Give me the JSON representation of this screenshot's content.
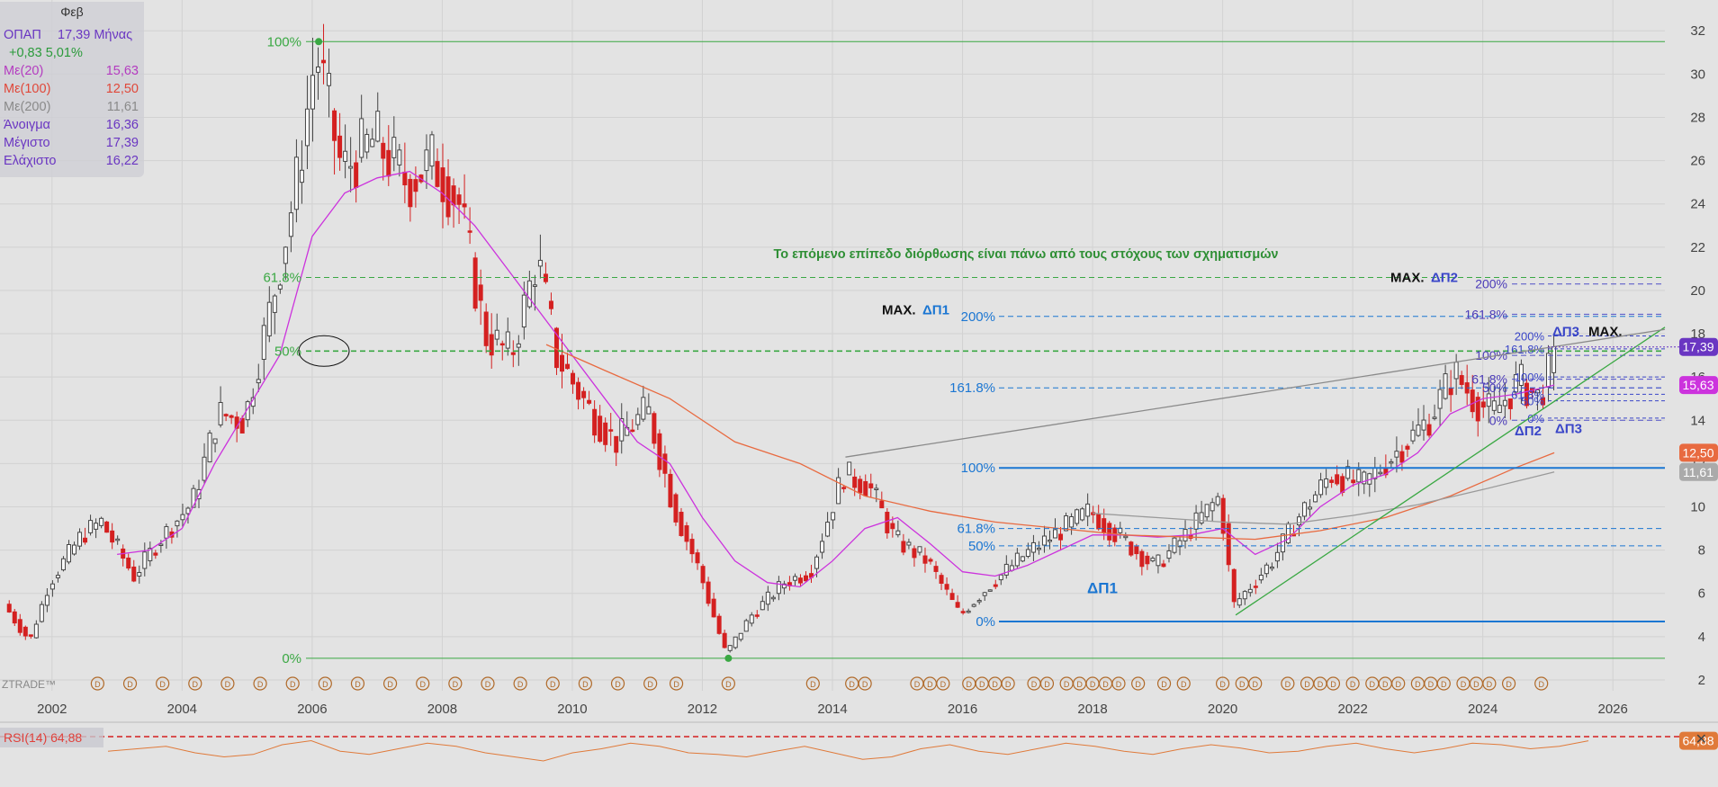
{
  "info": {
    "period": "Φεβ",
    "symbol": "ΟΠΑΠ",
    "price_text": "17,39 Μήνας",
    "change_text": "+0,83 5,01%",
    "rows": [
      {
        "label": "Με(20)",
        "value": "15,63",
        "color": "#b43cc0"
      },
      {
        "label": "Με(100)",
        "value": "12,50",
        "color": "#e0483a"
      },
      {
        "label": "Με(200)",
        "value": "11,61",
        "color": "#8a8a8a"
      },
      {
        "label": "Άνοιγμα",
        "value": "16,36",
        "color": "#6a36c2"
      },
      {
        "label": "Μέγιστο",
        "value": "17,39",
        "color": "#6a36c2"
      },
      {
        "label": "Ελάχιστο",
        "value": "16,22",
        "color": "#6a36c2"
      }
    ]
  },
  "rsi": {
    "label": "RSI(14)",
    "value": "64,88",
    "last_badge": "64,88",
    "series": [
      52,
      55,
      58,
      50,
      45,
      48,
      60,
      65,
      52,
      48,
      55,
      62,
      58,
      50,
      45,
      40,
      50,
      55,
      62,
      58,
      50,
      48,
      45,
      52,
      58,
      50,
      42,
      45,
      55,
      60,
      52,
      48,
      55,
      62,
      58,
      52,
      48,
      55,
      60,
      56,
      50,
      52,
      58,
      62,
      55,
      50,
      55,
      62,
      60,
      55,
      58,
      64.88
    ]
  },
  "watermark": "ZTRADE™",
  "annotation_main": "Το επόμενο επίπεδο διόρθωσης είναι πάνω από τους στόχους των σχηματισμών",
  "colors": {
    "up": "#444444",
    "down": "#d42020",
    "ma20": "#cc33dd",
    "ma100": "#e86a40",
    "ma200": "#9a9a9a",
    "fib_green": "#3aa843",
    "fib_blue": "#1b76d2"
  },
  "chart_data": {
    "type": "candlestick",
    "title": "ΟΠΑΠ",
    "interval": "monthly",
    "x_range": [
      2001.2,
      2026.8
    ],
    "x_ticks": [
      "2002",
      "2004",
      "2006",
      "2008",
      "2010",
      "2012",
      "2014",
      "2016",
      "2018",
      "2020",
      "2022",
      "2024",
      "2026"
    ],
    "y_range": [
      1.5,
      32.8
    ],
    "y_ticks": [
      "2",
      "4",
      "6",
      "8",
      "10",
      "12",
      "14",
      "16",
      "18",
      "20",
      "22",
      "24",
      "26",
      "28",
      "30",
      "32"
    ],
    "price_path": [
      [
        2001.3,
        5.5
      ],
      [
        2001.7,
        3.8
      ],
      [
        2002.0,
        6.5
      ],
      [
        2002.5,
        8.7
      ],
      [
        2002.8,
        9.3
      ],
      [
        2003.3,
        6.8
      ],
      [
        2003.7,
        8.5
      ],
      [
        2004.2,
        10.2
      ],
      [
        2004.6,
        14.3
      ],
      [
        2005.0,
        14.0
      ],
      [
        2005.5,
        20.5
      ],
      [
        2005.8,
        25.0
      ],
      [
        2006.1,
        31.1
      ],
      [
        2006.5,
        25.5
      ],
      [
        2007.0,
        27.0
      ],
      [
        2007.5,
        25.0
      ],
      [
        2007.9,
        26.0
      ],
      [
        2008.3,
        24.0
      ],
      [
        2008.7,
        18.0
      ],
      [
        2009.1,
        17.0
      ],
      [
        2009.5,
        21.5
      ],
      [
        2009.8,
        17.0
      ],
      [
        2010.3,
        14.5
      ],
      [
        2010.7,
        13.0
      ],
      [
        2011.2,
        14.5
      ],
      [
        2011.6,
        10.0
      ],
      [
        2012.0,
        7.0
      ],
      [
        2012.4,
        3.2
      ],
      [
        2012.8,
        5.0
      ],
      [
        2013.3,
        6.5
      ],
      [
        2013.7,
        7.0
      ],
      [
        2014.2,
        11.5
      ],
      [
        2014.6,
        11.0
      ],
      [
        2015.0,
        8.5
      ],
      [
        2015.5,
        7.5
      ],
      [
        2016.0,
        5.0
      ],
      [
        2016.5,
        6.5
      ],
      [
        2017.0,
        7.8
      ],
      [
        2017.5,
        8.8
      ],
      [
        2018.0,
        9.8
      ],
      [
        2018.5,
        8.5
      ],
      [
        2019.0,
        7.2
      ],
      [
        2019.5,
        8.8
      ],
      [
        2020.0,
        10.5
      ],
      [
        2020.2,
        5.4
      ],
      [
        2020.8,
        7.5
      ],
      [
        2021.2,
        9.5
      ],
      [
        2021.7,
        11.5
      ],
      [
        2022.2,
        11.0
      ],
      [
        2022.7,
        12.5
      ],
      [
        2023.2,
        14.0
      ],
      [
        2023.6,
        16.2
      ],
      [
        2023.9,
        15.0
      ],
      [
        2024.2,
        14.3
      ],
      [
        2024.6,
        15.8
      ],
      [
        2024.9,
        15.0
      ],
      [
        2025.1,
        16.6
      ]
    ],
    "series": [
      {
        "name": "Με(20)",
        "last_value": "15,63",
        "path": [
          [
            2003.0,
            7.8
          ],
          [
            2003.5,
            8.0
          ],
          [
            2004.0,
            9.0
          ],
          [
            2004.5,
            12.0
          ],
          [
            2005.0,
            14.5
          ],
          [
            2005.5,
            17.0
          ],
          [
            2006.0,
            22.5
          ],
          [
            2006.5,
            24.5
          ],
          [
            2007.0,
            25.2
          ],
          [
            2007.5,
            25.5
          ],
          [
            2008.0,
            24.5
          ],
          [
            2008.5,
            23.0
          ],
          [
            2009.0,
            21.0
          ],
          [
            2009.5,
            19.0
          ],
          [
            2010.0,
            17.0
          ],
          [
            2010.5,
            15.0
          ],
          [
            2011.0,
            13.0
          ],
          [
            2011.5,
            12.0
          ],
          [
            2012.0,
            9.5
          ],
          [
            2012.5,
            7.5
          ],
          [
            2013.0,
            6.5
          ],
          [
            2013.5,
            6.3
          ],
          [
            2014.0,
            7.5
          ],
          [
            2014.5,
            9.0
          ],
          [
            2015.0,
            9.5
          ],
          [
            2015.5,
            8.3
          ],
          [
            2016.0,
            7.0
          ],
          [
            2016.5,
            6.8
          ],
          [
            2017.0,
            7.3
          ],
          [
            2017.5,
            8.0
          ],
          [
            2018.0,
            8.7
          ],
          [
            2018.5,
            8.7
          ],
          [
            2019.0,
            8.6
          ],
          [
            2019.5,
            8.7
          ],
          [
            2020.0,
            9.0
          ],
          [
            2020.5,
            7.8
          ],
          [
            2021.0,
            8.5
          ],
          [
            2021.5,
            10.0
          ],
          [
            2022.0,
            11.0
          ],
          [
            2022.5,
            11.5
          ],
          [
            2023.0,
            12.5
          ],
          [
            2023.5,
            14.3
          ],
          [
            2024.0,
            15.0
          ],
          [
            2024.5,
            15.2
          ],
          [
            2025.1,
            15.63
          ]
        ]
      },
      {
        "name": "Με(100)",
        "last_value": "12,50",
        "path": [
          [
            2009.6,
            17.5
          ],
          [
            2010.5,
            16.3
          ],
          [
            2011.5,
            15.0
          ],
          [
            2012.5,
            13.0
          ],
          [
            2013.5,
            12.0
          ],
          [
            2014.5,
            10.5
          ],
          [
            2015.5,
            9.8
          ],
          [
            2016.5,
            9.3
          ],
          [
            2017.5,
            9.0
          ],
          [
            2018.5,
            8.7
          ],
          [
            2019.5,
            8.6
          ],
          [
            2020.5,
            8.5
          ],
          [
            2021.5,
            8.9
          ],
          [
            2022.5,
            9.5
          ],
          [
            2023.5,
            10.5
          ],
          [
            2024.5,
            11.8
          ],
          [
            2025.1,
            12.5
          ]
        ]
      },
      {
        "name": "Με(200)",
        "last_value": "11,61",
        "path": [
          [
            2018.0,
            9.7
          ],
          [
            2019.0,
            9.5
          ],
          [
            2020.0,
            9.3
          ],
          [
            2021.0,
            9.2
          ],
          [
            2022.0,
            9.6
          ],
          [
            2023.0,
            10.1
          ],
          [
            2024.0,
            10.8
          ],
          [
            2025.1,
            11.61
          ]
        ]
      }
    ],
    "price_badge": "17,39",
    "fib_green": {
      "levels": [
        {
          "label": "100%",
          "value": 31.5
        },
        {
          "label": "61.8%",
          "value": 20.6
        },
        {
          "label": "50%",
          "value": 17.2
        },
        {
          "label": "0%",
          "value": 3.0
        }
      ]
    },
    "fib_dp1": {
      "name": "ΔΠ1",
      "max_label": "MAX.",
      "levels": [
        {
          "label": "200%",
          "value": 18.8
        },
        {
          "label": "161.8%",
          "value": 15.5
        },
        {
          "label": "100%",
          "value": 11.8
        },
        {
          "label": "61.8%",
          "value": 9.0
        },
        {
          "label": "50%",
          "value": 8.2
        },
        {
          "label": "0%",
          "value": 4.7
        }
      ]
    },
    "fib_dp2": {
      "name": "ΔΠ2",
      "max_label": "MAX.",
      "levels": [
        {
          "label": "200%",
          "value": 20.3
        },
        {
          "label": "161.8%",
          "value": 18.9
        },
        {
          "label": "100%",
          "value": 17.0
        },
        {
          "label": "61.8%",
          "value": 15.9
        },
        {
          "label": "50%",
          "value": 15.5
        },
        {
          "label": "0%",
          "value": 14.0
        }
      ]
    },
    "fib_dp3": {
      "name": "ΔΠ3",
      "max_label": "MAX.",
      "levels": [
        {
          "label": "200%",
          "value": 17.9
        },
        {
          "label": "161.8%",
          "value": 17.3
        },
        {
          "label": "100%",
          "value": 16.0
        },
        {
          "label": "61.8%",
          "value": 15.2
        },
        {
          "label": "50%",
          "value": 14.9
        },
        {
          "label": "0%",
          "value": 14.1
        }
      ]
    },
    "trendlines": [
      {
        "name": "support",
        "from": [
          2020.2,
          5.0
        ],
        "to": [
          2026.8,
          18.3
        ]
      },
      {
        "name": "resistance",
        "from": [
          2014.2,
          12.3
        ],
        "to": [
          2026.8,
          18.2
        ]
      }
    ],
    "event_markers": [
      2002.7,
      2003.2,
      2003.7,
      2004.2,
      2004.7,
      2005.2,
      2005.7,
      2006.2,
      2006.7,
      2007.2,
      2007.7,
      2008.2,
      2008.7,
      2009.2,
      2009.7,
      2010.2,
      2010.7,
      2011.2,
      2011.6,
      2012.4,
      2013.7,
      2014.3,
      2014.5,
      2015.3,
      2015.5,
      2015.7,
      2016.1,
      2016.3,
      2016.5,
      2016.7,
      2017.1,
      2017.3,
      2017.6,
      2017.8,
      2018.0,
      2018.2,
      2018.4,
      2018.7,
      2019.1,
      2019.4,
      2020.0,
      2020.3,
      2020.5,
      2021.0,
      2021.3,
      2021.5,
      2021.7,
      2022.0,
      2022.3,
      2022.5,
      2022.7,
      2023.0,
      2023.2,
      2023.4,
      2023.7,
      2023.9,
      2024.1,
      2024.4,
      2024.9
    ]
  }
}
